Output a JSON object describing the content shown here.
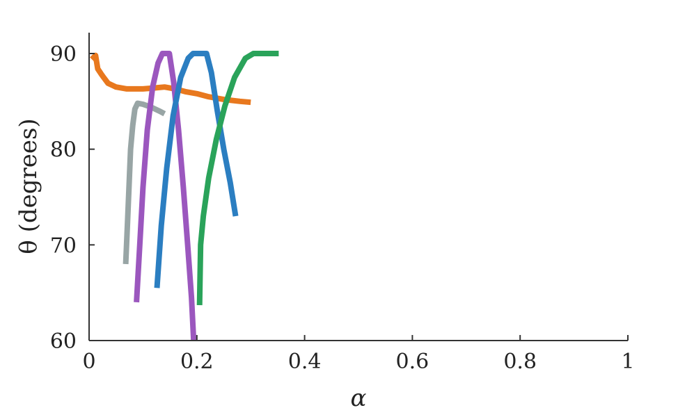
{
  "chart_data": {
    "type": "line",
    "title": "",
    "xlabel": "α",
    "ylabel": "θ (degrees)",
    "xlim": [
      0,
      1
    ],
    "ylim": [
      60,
      90
    ],
    "xticks": [
      "0",
      "0.2",
      "0.4",
      "0.6",
      "0.8",
      "1"
    ],
    "xtick_values": [
      0,
      0.2,
      0.4,
      0.6,
      0.8,
      1
    ],
    "yticks": [
      "60",
      "70",
      "80",
      "90"
    ],
    "ytick_values": [
      60,
      70,
      80,
      90
    ],
    "grid": false,
    "legend": "none",
    "series": [
      {
        "color": "#e8781e",
        "points": [
          [
            0.005,
            89.4
          ],
          [
            0.012,
            89.8
          ],
          [
            0.016,
            88.4
          ],
          [
            0.022,
            87.9
          ],
          [
            0.027,
            87.5
          ],
          [
            0.035,
            86.9
          ],
          [
            0.05,
            86.5
          ],
          [
            0.07,
            86.3
          ],
          [
            0.1,
            86.3
          ],
          [
            0.12,
            86.4
          ],
          [
            0.14,
            86.5
          ],
          [
            0.16,
            86.3
          ],
          [
            0.18,
            86.0
          ],
          [
            0.2,
            85.8
          ],
          [
            0.22,
            85.5
          ],
          [
            0.25,
            85.2
          ],
          [
            0.28,
            85.0
          ],
          [
            0.3,
            84.9
          ]
        ]
      },
      {
        "color": "#98a5a5",
        "points": [
          [
            0.068,
            68.0
          ],
          [
            0.071,
            72.0
          ],
          [
            0.074,
            76.0
          ],
          [
            0.077,
            80.0
          ],
          [
            0.081,
            82.5
          ],
          [
            0.085,
            84.2
          ],
          [
            0.09,
            84.8
          ],
          [
            0.1,
            84.7
          ],
          [
            0.115,
            84.4
          ],
          [
            0.13,
            84.0
          ],
          [
            0.14,
            83.7
          ]
        ]
      },
      {
        "color": "#9b57be",
        "points": [
          [
            0.088,
            64.0
          ],
          [
            0.094,
            70.0
          ],
          [
            0.1,
            76.0
          ],
          [
            0.108,
            82.0
          ],
          [
            0.118,
            86.5
          ],
          [
            0.128,
            89.0
          ],
          [
            0.136,
            90.0
          ],
          [
            0.149,
            90.0
          ],
          [
            0.157,
            87.0
          ],
          [
            0.166,
            82.0
          ],
          [
            0.175,
            76.0
          ],
          [
            0.183,
            70.0
          ],
          [
            0.19,
            64.5
          ],
          [
            0.194,
            60.0
          ]
        ]
      },
      {
        "color": "#2b7ec1",
        "points": [
          [
            0.126,
            65.5
          ],
          [
            0.134,
            72.0
          ],
          [
            0.144,
            78.0
          ],
          [
            0.156,
            83.5
          ],
          [
            0.17,
            87.5
          ],
          [
            0.184,
            89.5
          ],
          [
            0.193,
            90.0
          ],
          [
            0.218,
            90.0
          ],
          [
            0.227,
            88.0
          ],
          [
            0.238,
            84.0
          ],
          [
            0.25,
            80.0
          ],
          [
            0.262,
            76.5
          ],
          [
            0.272,
            73.0
          ]
        ]
      },
      {
        "color": "#2aa35a",
        "points": [
          [
            0.205,
            63.7
          ],
          [
            0.207,
            70.0
          ],
          [
            0.212,
            73.0
          ],
          [
            0.222,
            77.0
          ],
          [
            0.236,
            81.0
          ],
          [
            0.252,
            84.5
          ],
          [
            0.27,
            87.5
          ],
          [
            0.29,
            89.5
          ],
          [
            0.305,
            90.0
          ],
          [
            0.352,
            90.0
          ]
        ]
      }
    ]
  }
}
